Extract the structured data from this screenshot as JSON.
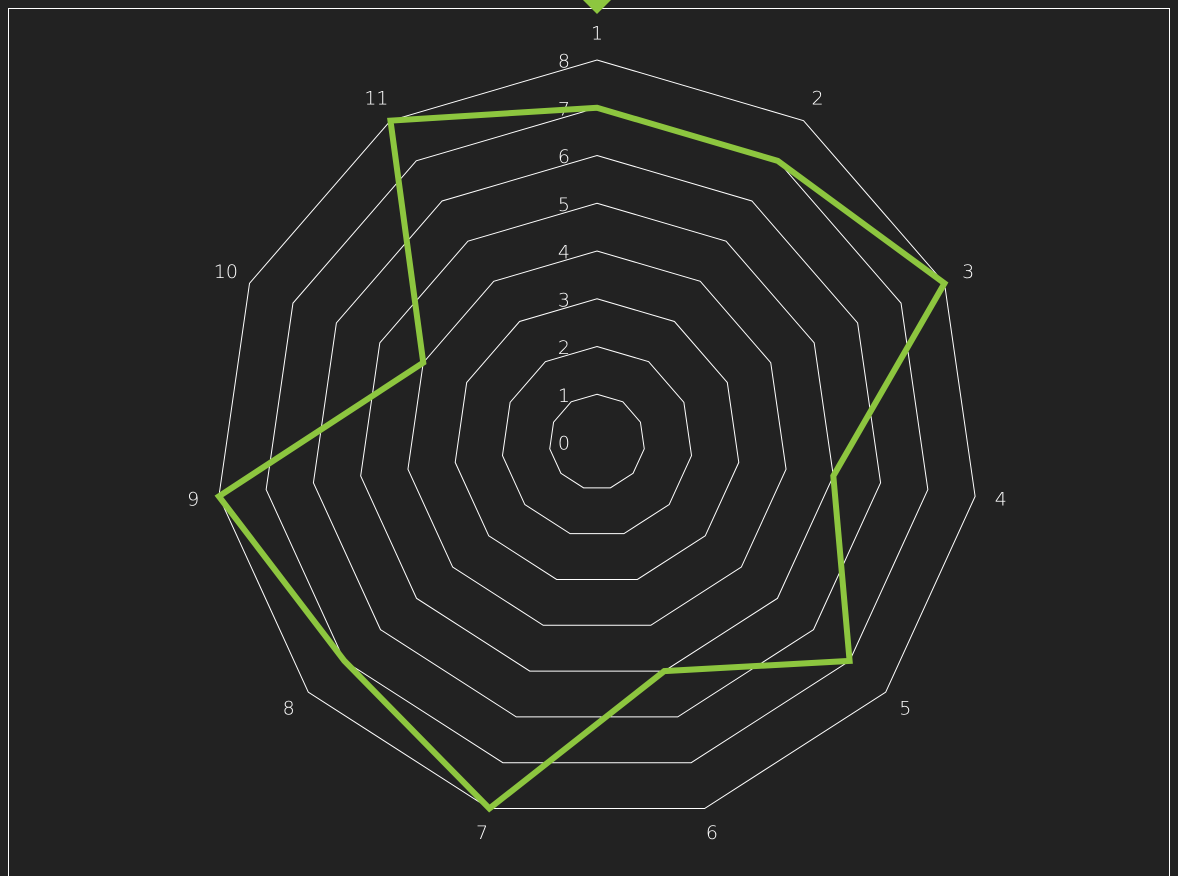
{
  "chart_data": {
    "type": "radar",
    "categories": [
      "1",
      "2",
      "3",
      "4",
      "5",
      "6",
      "7",
      "8",
      "9",
      "10",
      "11"
    ],
    "series": [
      {
        "color": "#8dc63f",
        "values": [
          7,
          7,
          8,
          5,
          7,
          5,
          8,
          7,
          8,
          4,
          8
        ]
      }
    ],
    "ylim": [
      0,
      8
    ],
    "yticks": [
      0,
      1,
      2,
      3,
      4,
      5,
      6,
      7,
      8
    ],
    "grid": true
  }
}
